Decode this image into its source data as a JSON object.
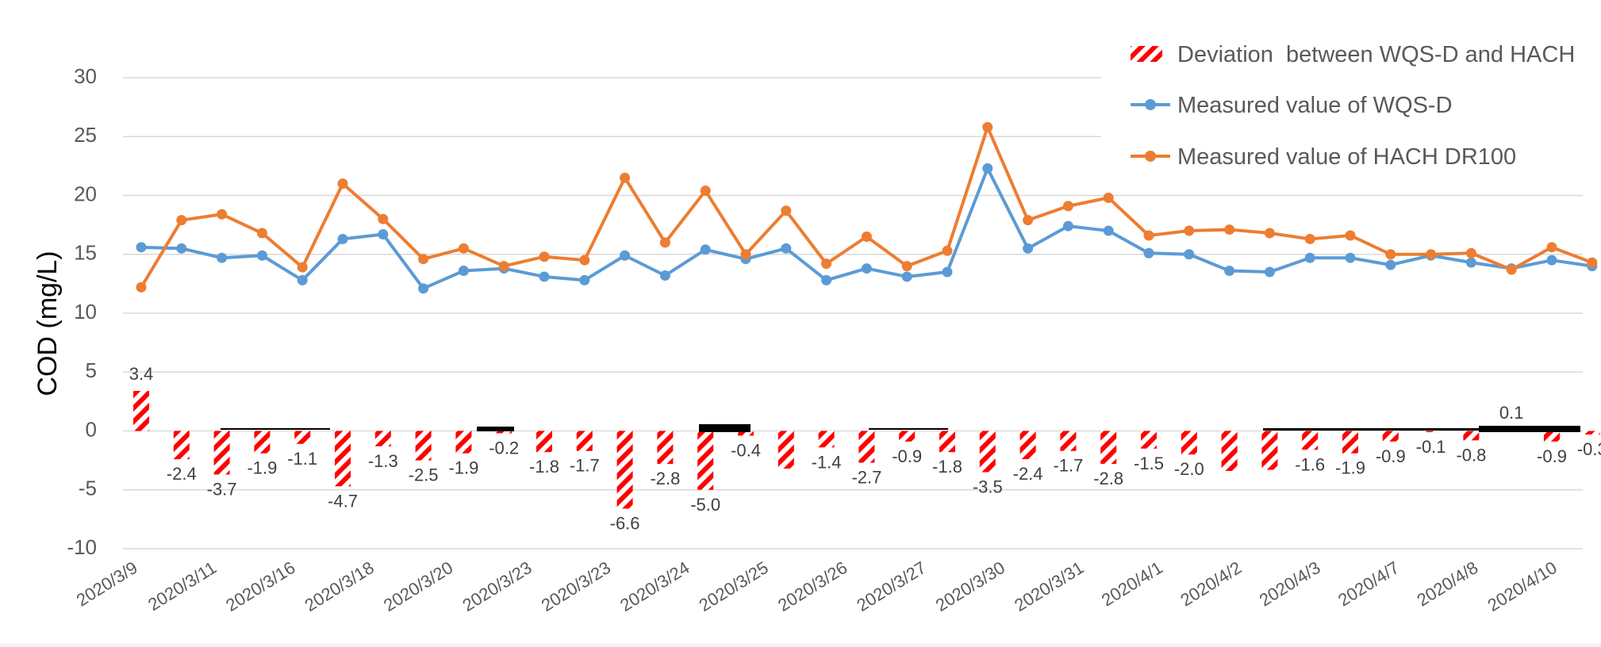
{
  "chart_data": {
    "type": "bar+line",
    "ylabel": "COD (mg/L)",
    "ylim": [
      -10,
      30
    ],
    "yticks": [
      -10,
      -5,
      0,
      5,
      10,
      15,
      20,
      25,
      30
    ],
    "grid": true,
    "legend_position": "top-right",
    "x_tick_labels": [
      "2020/3/9",
      "2020/3/11",
      "2020/3/16",
      "2020/3/18",
      "2020/3/20",
      "2020/3/23",
      "2020/3/23",
      "2020/3/24",
      "2020/3/25",
      "2020/3/26",
      "2020/3/27",
      "2020/3/30",
      "2020/3/31",
      "2020/4/1",
      "2020/4/2",
      "2020/4/3",
      "2020/4/7",
      "2020/4/8",
      "2020/4/10"
    ],
    "series": [
      {
        "name": "Deviation  between WQS-D and HACH",
        "type": "bar",
        "color": "#ff0000",
        "values": [
          3.4,
          -2.4,
          -3.7,
          -1.9,
          -1.1,
          -4.7,
          -1.3,
          -2.5,
          -1.9,
          -0.2,
          -1.8,
          -1.7,
          -6.6,
          -2.8,
          -5.0,
          -0.4,
          -3.2,
          -1.4,
          -2.7,
          -0.9,
          -1.8,
          -3.5,
          -2.4,
          -1.7,
          -2.8,
          -1.5,
          -2.0,
          -3.4,
          -3.3,
          -1.6,
          -1.9,
          -0.9,
          -0.1,
          -0.8,
          0.1,
          -0.9,
          -0.3
        ],
        "labels": [
          "3.4",
          "-2.4",
          "-3.7",
          "-1.9",
          "-1.1",
          "-4.7",
          "-1.3",
          "-2.5",
          "-1.9",
          "-0.2",
          "-1.8",
          "-1.7",
          "-6.6",
          "-2.8",
          "-5.0",
          "-0.4",
          "",
          "-1.4",
          "-2.7",
          "-0.9",
          "-1.8",
          "-3.5",
          "-2.4",
          "-1.7",
          "-2.8",
          "-1.5",
          "-2.0",
          "",
          "",
          "-1.6",
          "-1.9",
          "-0.9",
          "-0.1",
          "-0.8",
          "0.1",
          "-0.9",
          "-0.3"
        ]
      },
      {
        "name": "Measured value of WQS-D",
        "type": "line",
        "color": "#5b9bd5",
        "values": [
          15.6,
          15.5,
          14.7,
          14.9,
          12.8,
          16.3,
          16.7,
          12.1,
          13.6,
          13.8,
          13.1,
          12.8,
          14.9,
          13.2,
          15.4,
          14.6,
          15.5,
          12.8,
          13.8,
          13.1,
          13.5,
          22.3,
          15.5,
          17.4,
          17.0,
          15.1,
          15.0,
          13.6,
          13.5,
          14.7,
          14.7,
          14.1,
          14.9,
          14.3,
          13.8,
          14.5,
          14.0
        ]
      },
      {
        "name": "Measured value of HACH DR100",
        "type": "line",
        "color": "#ed7d31",
        "values": [
          12.2,
          17.9,
          18.4,
          16.8,
          13.9,
          21.0,
          18.0,
          14.6,
          15.5,
          14.0,
          14.8,
          14.5,
          21.5,
          16.0,
          20.4,
          15.0,
          18.7,
          14.2,
          16.5,
          14.0,
          15.3,
          25.8,
          17.9,
          19.1,
          19.8,
          16.6,
          17.0,
          17.1,
          16.8,
          16.3,
          16.6,
          15.0,
          15.0,
          15.1,
          13.7,
          15.6,
          14.3
        ]
      }
    ]
  },
  "colors": {
    "bar_stripe": "#ff0000",
    "wqs_line": "#5b9bd5",
    "hach_line": "#ed7d31",
    "grid": "#d9d9d9",
    "text": "#595959"
  }
}
